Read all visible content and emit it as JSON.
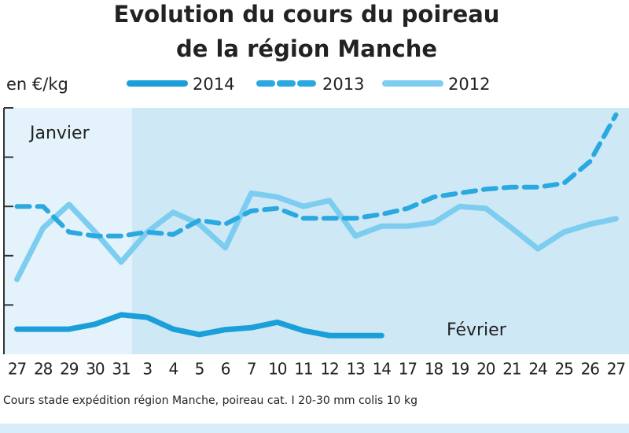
{
  "chart_data": {
    "type": "line",
    "title": "Evolution du cours du poireau",
    "subtitle": "de la région Manche",
    "y_label": "en €/kg",
    "note": "Cours stade expédition région Manche, poireau cat. I 20-30 mm colis 10 kg",
    "annotations": [
      "Janvier",
      "Février"
    ],
    "categories": [
      "27",
      "28",
      "29",
      "30",
      "31",
      "3",
      "4",
      "5",
      "6",
      "7",
      "10",
      "11",
      "12",
      "13",
      "14",
      "17",
      "18",
      "19",
      "20",
      "21",
      "24",
      "25",
      "26",
      "27"
    ],
    "series": [
      {
        "name": "2014",
        "color": "#1a9fd9",
        "style": "solid",
        "values": [
          0.51,
          0.51,
          0.51,
          0.61,
          0.8,
          0.75,
          0.51,
          0.4,
          0.5,
          0.54,
          0.65,
          0.48,
          0.38,
          0.38,
          0.38,
          null,
          null,
          null,
          null,
          null,
          null,
          null,
          null,
          null
        ]
      },
      {
        "name": "2013",
        "color": "#29a9df",
        "style": "dashed",
        "values": [
          3.0,
          3.0,
          2.48,
          2.4,
          2.4,
          2.48,
          2.43,
          2.72,
          2.64,
          2.91,
          2.96,
          2.76,
          2.76,
          2.76,
          2.84,
          2.96,
          3.19,
          3.27,
          3.35,
          3.39,
          3.39,
          3.47,
          3.91,
          4.86
        ]
      },
      {
        "name": "2012",
        "color": "#7dcdf0",
        "style": "solid",
        "values": [
          1.52,
          2.56,
          3.04,
          2.48,
          1.87,
          2.48,
          2.88,
          2.64,
          2.16,
          3.27,
          3.19,
          3.0,
          3.12,
          2.4,
          2.6,
          2.6,
          2.67,
          3.0,
          2.96,
          2.56,
          2.14,
          2.48,
          2.64,
          2.75
        ]
      }
    ],
    "ylim": [
      0,
      5
    ],
    "yticks": [
      1,
      2,
      3,
      4,
      5
    ],
    "legend": "top"
  }
}
